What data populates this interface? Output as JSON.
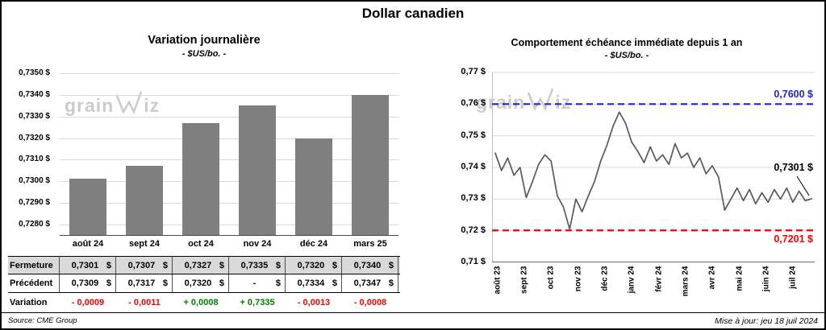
{
  "page": {
    "title": "Dollar canadien",
    "source": "Source: CME Group",
    "updated": "Mise à jour: jeu 18 juil 2024",
    "watermark": {
      "part1": "grain",
      "part2": "iz"
    }
  },
  "right_chart": {
    "last_label_color": "#000000"
  },
  "table": {
    "rows": [
      {
        "name": "fermeture",
        "label": "Fermeture",
        "cells": [
          {
            "num": "0,7301",
            "suffix": "$"
          },
          {
            "num": "0,7307",
            "suffix": "$"
          },
          {
            "num": "0,7327",
            "suffix": "$"
          },
          {
            "num": "0,7335",
            "suffix": "$"
          },
          {
            "num": "0,7320",
            "suffix": "$"
          },
          {
            "num": "0,7340",
            "suffix": "$"
          }
        ]
      },
      {
        "name": "precedent",
        "label": "Précédent",
        "cells": [
          {
            "num": "0,7309",
            "suffix": "$"
          },
          {
            "num": "0,7317",
            "suffix": "$"
          },
          {
            "num": "0,7320",
            "suffix": "$"
          },
          {
            "num": "-",
            "suffix": "$"
          },
          {
            "num": "0,7334",
            "suffix": "$"
          },
          {
            "num": "0,7347",
            "susuffix": "$",
            "suffix": "$"
          }
        ]
      },
      {
        "name": "variation",
        "label": "Variation",
        "cells": [
          {
            "num": "- 0,0009",
            "color": "#ff0000"
          },
          {
            "num": "- 0,0011",
            "color": "#ff0000"
          },
          {
            "num": "+ 0,0008",
            "color": "#008000"
          },
          {
            "num": "+ 0,7335",
            "color": "#008000"
          },
          {
            "num": "- 0,0013",
            "color": "#ff0000"
          },
          {
            "num": "- 0,0008",
            "color": "#ff0000"
          }
        ]
      }
    ]
  },
  "chart_data": [
    {
      "type": "bar",
      "title": "Variation  journalière",
      "subtitle": "- $US/bo. -",
      "categories": [
        "août 24",
        "sept 24",
        "oct 24",
        "nov 24",
        "déc 24",
        "mars 25"
      ],
      "values": [
        0.7301,
        0.7307,
        0.7327,
        0.7335,
        0.732,
        0.734
      ],
      "yticks": [
        0.728,
        0.729,
        0.73,
        0.731,
        0.732,
        0.733,
        0.734,
        0.735
      ],
      "ytick_labels": [
        "0,7280 $",
        "0,7290 $",
        "0,7300 $",
        "0,7310 $",
        "0,7320 $",
        "0,7330 $",
        "0,7340 $",
        "0,7350 $"
      ],
      "ylim": [
        0.7275,
        0.7352
      ],
      "bar_color": "#7f7f7f",
      "grid": true,
      "xlabel": "",
      "ylabel": "$US/bo."
    },
    {
      "type": "line",
      "title": "Comportement échéance immédiate depuis 1 an",
      "subtitle": "- $US/bo. -",
      "x_categories": [
        "août 23",
        "sept 23",
        "oct 23",
        "nov 23",
        "déc 23",
        "janv 24",
        "févr 24",
        "mars 24",
        "avr 24",
        "mai 24",
        "juin 24",
        "juil 24"
      ],
      "values": [
        0.7445,
        0.739,
        0.743,
        0.7375,
        0.74,
        0.7305,
        0.7355,
        0.741,
        0.744,
        0.742,
        0.731,
        0.7275,
        0.7205,
        0.73,
        0.726,
        0.731,
        0.7355,
        0.742,
        0.747,
        0.753,
        0.7575,
        0.754,
        0.748,
        0.745,
        0.7415,
        0.7465,
        0.742,
        0.744,
        0.741,
        0.7475,
        0.743,
        0.7445,
        0.74,
        0.743,
        0.738,
        0.7405,
        0.737,
        0.7265,
        0.73,
        0.7335,
        0.7295,
        0.733,
        0.7285,
        0.732,
        0.729,
        0.733,
        0.73,
        0.7335,
        0.729,
        0.7325,
        0.7295,
        0.7301
      ],
      "yticks": [
        0.71,
        0.72,
        0.73,
        0.74,
        0.75,
        0.76,
        0.77
      ],
      "ytick_labels": [
        "0,71 $",
        "0,72 $",
        "0,73 $",
        "0,74 $",
        "0,75 $",
        "0,76 $",
        "0,77 $"
      ],
      "ylim": [
        0.71,
        0.77
      ],
      "line_color": "#595959",
      "grid": true,
      "ref_lines": [
        {
          "value": 0.76,
          "label": "0,7600 $",
          "color": "#2222cc",
          "style": "dashed"
        },
        {
          "value": 0.7201,
          "label": "0,7201 $",
          "color": "#ff0000",
          "style": "dashed"
        }
      ],
      "last_point_label": "0,7301 $",
      "last_point_value": 0.7301,
      "legend": "none"
    }
  ]
}
